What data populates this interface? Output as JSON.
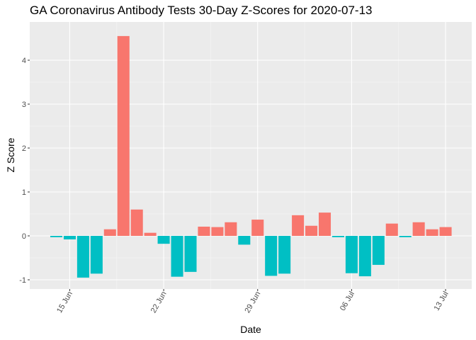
{
  "chart_data": {
    "type": "bar",
    "title": "GA Coronavirus Antibody Tests 30-Day Z-Scores for 2020-07-13",
    "xlabel": "Date",
    "ylabel": "Z Score",
    "ylim": [
      -1.2,
      4.75
    ],
    "yticks": [
      -1,
      0,
      1,
      2,
      3,
      4
    ],
    "xticks": [
      {
        "label": "15 Jun",
        "date": "2020-06-15"
      },
      {
        "label": "22 Jun",
        "date": "2020-06-22"
      },
      {
        "label": "29 Jun",
        "date": "2020-06-29"
      },
      {
        "label": "06 Jul",
        "date": "2020-07-06"
      },
      {
        "label": "13 Jul",
        "date": "2020-07-13"
      }
    ],
    "positive_color": "#F8766D",
    "negative_color": "#00BFC4",
    "grid": true,
    "legend": "none",
    "points": [
      {
        "date": "2020-06-14",
        "z": -0.03
      },
      {
        "date": "2020-06-15",
        "z": -0.08
      },
      {
        "date": "2020-06-16",
        "z": -0.95
      },
      {
        "date": "2020-06-17",
        "z": -0.86
      },
      {
        "date": "2020-06-18",
        "z": 0.15
      },
      {
        "date": "2020-06-19",
        "z": 4.55
      },
      {
        "date": "2020-06-20",
        "z": 0.6
      },
      {
        "date": "2020-06-21",
        "z": 0.07
      },
      {
        "date": "2020-06-22",
        "z": -0.18
      },
      {
        "date": "2020-06-23",
        "z": -0.93
      },
      {
        "date": "2020-06-24",
        "z": -0.82
      },
      {
        "date": "2020-06-25",
        "z": 0.21
      },
      {
        "date": "2020-06-26",
        "z": 0.2
      },
      {
        "date": "2020-06-27",
        "z": 0.31
      },
      {
        "date": "2020-06-28",
        "z": -0.2
      },
      {
        "date": "2020-06-29",
        "z": 0.37
      },
      {
        "date": "2020-06-30",
        "z": -0.91
      },
      {
        "date": "2020-07-01",
        "z": -0.86
      },
      {
        "date": "2020-07-02",
        "z": 0.47
      },
      {
        "date": "2020-07-03",
        "z": 0.23
      },
      {
        "date": "2020-07-04",
        "z": 0.53
      },
      {
        "date": "2020-07-05",
        "z": -0.03
      },
      {
        "date": "2020-07-06",
        "z": -0.85
      },
      {
        "date": "2020-07-07",
        "z": -0.92
      },
      {
        "date": "2020-07-08",
        "z": -0.66
      },
      {
        "date": "2020-07-09",
        "z": 0.28
      },
      {
        "date": "2020-07-10",
        "z": -0.03
      },
      {
        "date": "2020-07-11",
        "z": 0.31
      },
      {
        "date": "2020-07-12",
        "z": 0.15
      },
      {
        "date": "2020-07-13",
        "z": 0.2
      }
    ]
  }
}
